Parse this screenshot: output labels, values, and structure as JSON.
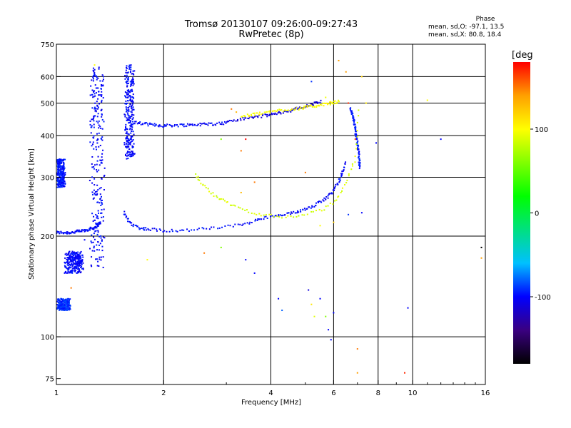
{
  "chart_data": {
    "type": "scatter",
    "title": "Tromsø 20130107 09:26:00-09:27:43",
    "subtitle": "RwPretec (8p)",
    "xlabel": "Frequency [MHz]",
    "ylabel": "Stationary phase Virtual Height [km]",
    "x_scale": "log",
    "y_scale": "log",
    "xlim": [
      1,
      16
    ],
    "ylim": [
      72,
      750
    ],
    "x_ticks": [
      1,
      2,
      4,
      6,
      8,
      10,
      16
    ],
    "x_gridlines": [
      2,
      4,
      6,
      8,
      10
    ],
    "y_ticks": [
      75,
      100,
      200,
      300,
      400,
      500,
      600,
      750
    ],
    "y_gridlines": [
      100,
      200,
      300,
      400,
      500,
      600
    ],
    "grid": true,
    "phase_stats": {
      "header": "Phase",
      "o_line": "mean, sd,O: -97.1, 13.5",
      "x_line": "mean, sd,X:  80.8, 18.4"
    },
    "colorbar": {
      "label": "[deg",
      "range": [
        -180,
        180
      ],
      "ticks": [
        100,
        0,
        -100
      ],
      "colors": [
        "#000000",
        "#3a0080",
        "#0000ff",
        "#00c0ff",
        "#00e080",
        "#00ff00",
        "#80ff00",
        "#ffff00",
        "#ffa000",
        "#ff0000"
      ]
    },
    "series": [
      {
        "segments": [
          {
            "kind": "curve",
            "f": [
              1.0,
              1.1,
              1.2,
              1.28,
              1.33
            ],
            "h": [
              205,
              205,
              208,
              212,
              220
            ],
            "phase": -100
          },
          {
            "kind": "curve",
            "f": [
              1.55,
              1.6,
              1.7,
              1.8,
              2.0,
              2.3,
              2.7,
              3.2,
              3.6,
              3.9
            ],
            "h": [
              235,
              220,
              212,
              210,
              208,
              208,
              211,
              215,
              222,
              228
            ],
            "phase": -98
          },
          {
            "kind": "curve",
            "f": [
              1.6,
              1.8,
              2.0,
              2.3,
              2.6,
              3.0
            ],
            "h": [
              440,
              432,
              428,
              430,
              432,
              436
            ],
            "phase": -100
          },
          {
            "kind": "curve",
            "f": [
              3.0,
              3.5,
              4.0,
              4.5,
              5.0,
              5.5
            ],
            "h": [
              440,
              452,
              462,
              474,
              488,
              505
            ],
            "phase": -110
          },
          {
            "kind": "curve",
            "f": [
              4.0,
              4.6,
              5.2,
              5.8,
              6.2,
              6.5
            ],
            "h": [
              228,
              234,
              245,
              262,
              290,
              330
            ],
            "phase": -100
          },
          {
            "kind": "curve",
            "f": [
              6.7,
              6.85,
              6.95,
              7.05,
              7.1
            ],
            "h": [
              480,
              440,
              400,
              360,
              320
            ],
            "phase": -95
          }
        ]
      },
      {
        "segments": [
          {
            "kind": "curve",
            "f": [
              2.45,
              2.6,
              2.8,
              3.0,
              3.3,
              3.7,
              4.2,
              4.8,
              5.5,
              6.1,
              6.5,
              6.9,
              7.05
            ],
            "h": [
              305,
              282,
              264,
              252,
              241,
              233,
              228,
              230,
              238,
              255,
              290,
              340,
              480
            ],
            "phase": 88
          },
          {
            "kind": "curve",
            "f": [
              3.3,
              3.7,
              4.2,
              4.8,
              5.3,
              5.8,
              6.2
            ],
            "h": [
              455,
              465,
              475,
              482,
              490,
              498,
              505
            ],
            "phase": 100
          }
        ]
      },
      {
        "segments": [
          {
            "kind": "band",
            "f": [
              1.24,
              1.37
            ],
            "h": [
              160,
              640
            ],
            "phase": -100
          },
          {
            "kind": "band",
            "f": [
              1.55,
              1.66
            ],
            "h": [
              340,
              650
            ],
            "phase": -100
          },
          {
            "kind": "band",
            "f": [
              1.05,
              1.2
            ],
            "h": [
              155,
              180
            ],
            "phase": -100
          },
          {
            "kind": "band",
            "f": [
              1.0,
              1.06
            ],
            "h": [
              280,
              340
            ],
            "phase": -95
          },
          {
            "kind": "band",
            "f": [
              1.0,
              1.1
            ],
            "h": [
              120,
              130
            ],
            "phase": -90
          }
        ]
      }
    ],
    "scattered_points": [
      {
        "f": 1.28,
        "h": 650,
        "phase": 100
      },
      {
        "f": 3.1,
        "h": 480,
        "phase": 150
      },
      {
        "f": 3.2,
        "h": 470,
        "phase": 130
      },
      {
        "f": 3.4,
        "h": 390,
        "phase": 180
      },
      {
        "f": 5.2,
        "h": 580,
        "phase": -90
      },
      {
        "f": 5.7,
        "h": 520,
        "phase": 95
      },
      {
        "f": 6.2,
        "h": 670,
        "phase": 140
      },
      {
        "f": 6.5,
        "h": 620,
        "phase": 140
      },
      {
        "f": 6.6,
        "h": 500,
        "phase": 170
      },
      {
        "f": 6.9,
        "h": 390,
        "phase": 160
      },
      {
        "f": 7.2,
        "h": 600,
        "phase": 120
      },
      {
        "f": 7.4,
        "h": 500,
        "phase": 110
      },
      {
        "f": 2.9,
        "h": 390,
        "phase": 60
      },
      {
        "f": 3.3,
        "h": 360,
        "phase": 150
      },
      {
        "f": 3.3,
        "h": 270,
        "phase": 130
      },
      {
        "f": 3.6,
        "h": 290,
        "phase": 150
      },
      {
        "f": 5.0,
        "h": 310,
        "phase": 150
      },
      {
        "f": 7.9,
        "h": 380,
        "phase": -100
      },
      {
        "f": 7.2,
        "h": 235,
        "phase": -100
      },
      {
        "f": 6.6,
        "h": 232,
        "phase": -90
      },
      {
        "f": 6.0,
        "h": 220,
        "phase": 120
      },
      {
        "f": 5.5,
        "h": 215,
        "phase": 100
      },
      {
        "f": 2.9,
        "h": 185,
        "phase": 60
      },
      {
        "f": 3.4,
        "h": 170,
        "phase": -100
      },
      {
        "f": 3.6,
        "h": 155,
        "phase": -100
      },
      {
        "f": 1.2,
        "h": 195,
        "phase": -100
      },
      {
        "f": 1.1,
        "h": 140,
        "phase": 150
      },
      {
        "f": 1.8,
        "h": 170,
        "phase": 100
      },
      {
        "f": 2.6,
        "h": 178,
        "phase": 150
      },
      {
        "f": 4.2,
        "h": 130,
        "phase": -100
      },
      {
        "f": 4.3,
        "h": 120,
        "phase": -80
      },
      {
        "f": 5.1,
        "h": 138,
        "phase": -110
      },
      {
        "f": 5.2,
        "h": 125,
        "phase": 110
      },
      {
        "f": 5.3,
        "h": 115,
        "phase": 90
      },
      {
        "f": 5.5,
        "h": 130,
        "phase": -100
      },
      {
        "f": 5.7,
        "h": 115,
        "phase": 60
      },
      {
        "f": 5.8,
        "h": 105,
        "phase": -100
      },
      {
        "f": 5.9,
        "h": 98,
        "phase": -100
      },
      {
        "f": 6.0,
        "h": 118,
        "phase": -100
      },
      {
        "f": 7.0,
        "h": 92,
        "phase": 150
      },
      {
        "f": 7.0,
        "h": 78,
        "phase": 140
      },
      {
        "f": 9.5,
        "h": 78,
        "phase": 170
      },
      {
        "f": 9.7,
        "h": 122,
        "phase": -100
      },
      {
        "f": 11.0,
        "h": 510,
        "phase": 100
      },
      {
        "f": 12.0,
        "h": 390,
        "phase": -100
      },
      {
        "f": 15.6,
        "h": 185,
        "phase": -180
      },
      {
        "f": 15.6,
        "h": 172,
        "phase": 140
      }
    ]
  }
}
